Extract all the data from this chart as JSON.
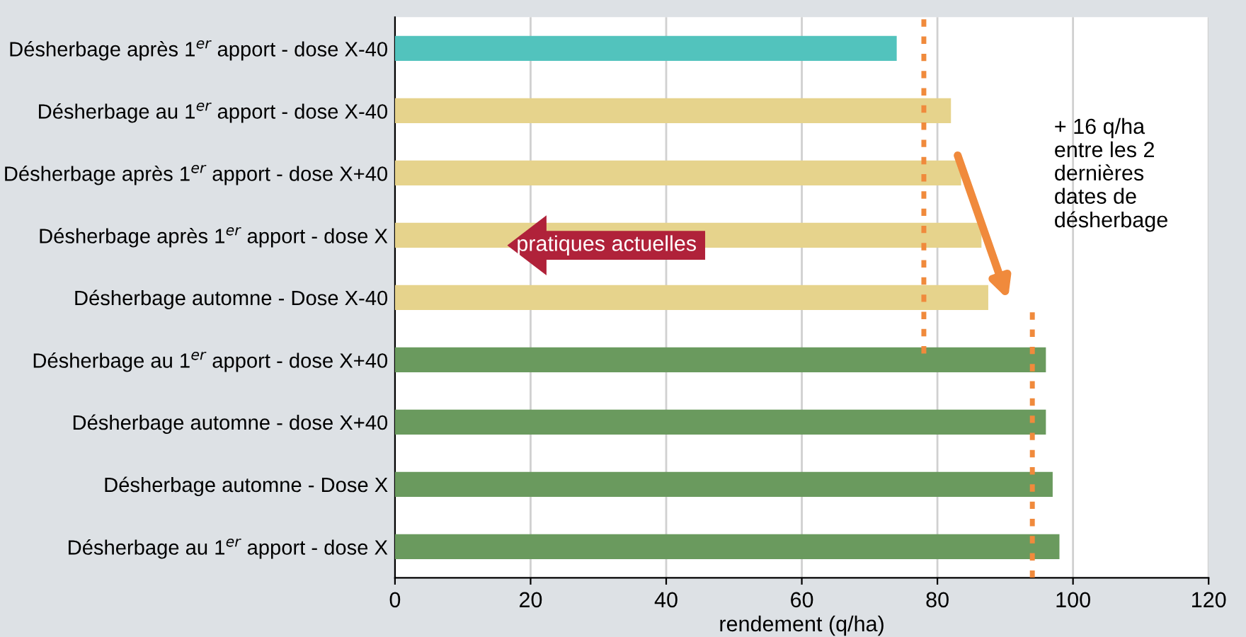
{
  "chart_data": {
    "type": "bar",
    "orientation": "horizontal",
    "xlabel": "rendement (q/ha)",
    "categories": [
      "Désherbage après 1$^{er}$ apport - dose X-40",
      "Désherbage au 1$^{er}$ apport - dose X-40",
      "Désherbage après 1$^{er}$ apport - dose X+40",
      "Désherbage après 1$^{er}$ apport - dose X",
      "Désherbage automne - Dose X-40",
      "Désherbage au 1$^{er}$ apport - dose X+40",
      "Désherbage automne - dose X+40",
      "Désherbage automne - Dose X",
      "Désherbage au 1$^{er}$ apport - dose X"
    ],
    "values": [
      74,
      82,
      83.5,
      86.5,
      87.5,
      96,
      96,
      97,
      98
    ],
    "colors": [
      "#52c3bd",
      "#e6d38c",
      "#e6d38c",
      "#e6d38c",
      "#e6d38c",
      "#6a9a5e",
      "#6a9a5e",
      "#6a9a5e",
      "#6a9a5e"
    ],
    "xlim": [
      0,
      120
    ],
    "xticks": [
      0,
      20,
      40,
      60,
      80,
      100,
      120
    ],
    "grid": "x",
    "ref_lines": [
      {
        "axis": "x",
        "value": 78,
        "color": "#f08a3c",
        "line_style": "dotted"
      },
      {
        "axis": "x",
        "value": 94,
        "color": "#f08a3c",
        "line_style": "dotted"
      }
    ],
    "annotations": [
      "+ 16 q/ha\nentre les 2\ndernières\ndates de\ndésherbage",
      "pratiques actuelles"
    ]
  }
}
